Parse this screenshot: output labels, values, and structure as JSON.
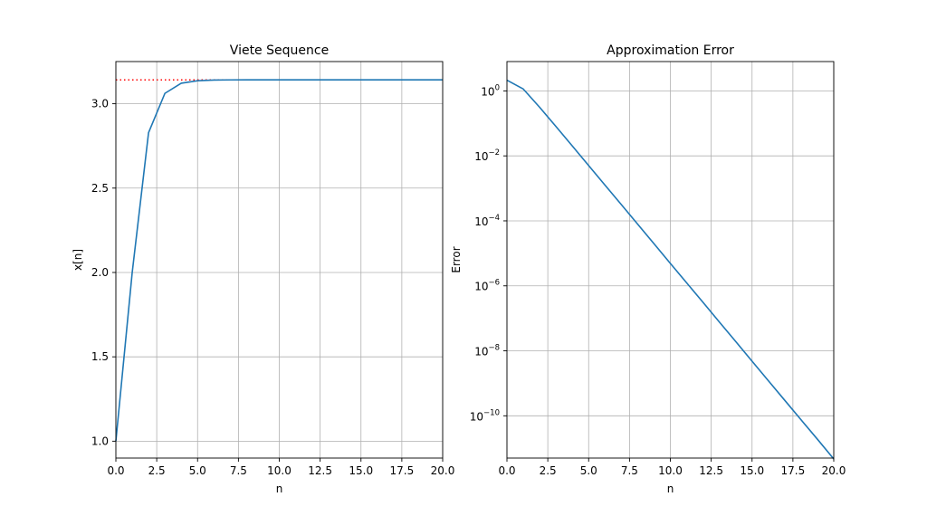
{
  "chart_data": [
    {
      "type": "line",
      "title": "Viete Sequence",
      "xlabel": "n",
      "ylabel": "x[n]",
      "xlim": [
        0,
        20
      ],
      "ylim": [
        0.9,
        3.25
      ],
      "xticks": [
        0,
        2.5,
        5,
        7.5,
        10,
        12.5,
        15,
        17.5,
        20
      ],
      "xtick_labels": [
        "0.0",
        "2.5",
        "5.0",
        "7.5",
        "10.0",
        "12.5",
        "15.0",
        "17.5",
        "20.0"
      ],
      "yticks": [
        1.0,
        1.5,
        2.0,
        2.5,
        3.0
      ],
      "ytick_labels": [
        "1.0",
        "1.5",
        "2.0",
        "2.5",
        "3.0"
      ],
      "grid": true,
      "reference_line": {
        "y": 3.14159,
        "style": "dotted",
        "color": "#ff0000"
      },
      "series": [
        {
          "color": "#1f77b4",
          "x": [
            0,
            1,
            2,
            3,
            4,
            5,
            6,
            7,
            8,
            9,
            10,
            11,
            12,
            13,
            14,
            15,
            16,
            17,
            18,
            19,
            20
          ],
          "y": [
            1.0,
            2.0,
            2.8284,
            3.0615,
            3.1214,
            3.1365,
            3.1403,
            3.1413,
            3.1415,
            3.1416,
            3.1416,
            3.1416,
            3.1416,
            3.1416,
            3.1416,
            3.1416,
            3.1416,
            3.1416,
            3.1416,
            3.1416,
            3.1416
          ]
        }
      ]
    },
    {
      "type": "line",
      "title": "Approximation Error",
      "xlabel": "n",
      "ylabel": "Error",
      "xlim": [
        0,
        20
      ],
      "ylim": [
        5e-12,
        8
      ],
      "yscale": "log",
      "xticks": [
        0,
        2.5,
        5,
        7.5,
        10,
        12.5,
        15,
        17.5,
        20
      ],
      "xtick_labels": [
        "0.0",
        "2.5",
        "5.0",
        "7.5",
        "10.0",
        "12.5",
        "15.0",
        "17.5",
        "20.0"
      ],
      "yticks": [
        1,
        0.01,
        0.0001,
        1e-06,
        1e-08,
        1e-10
      ],
      "ytick_labels": [
        {
          "base": "10",
          "exp": "0"
        },
        {
          "base": "10",
          "exp": "−2"
        },
        {
          "base": "10",
          "exp": "−4"
        },
        {
          "base": "10",
          "exp": "−6"
        },
        {
          "base": "10",
          "exp": "−8"
        },
        {
          "base": "10",
          "exp": "−10"
        }
      ],
      "grid": true,
      "series": [
        {
          "color": "#1f77b4",
          "x": [
            0,
            1,
            2,
            3,
            4,
            5,
            6,
            7,
            8,
            9,
            10,
            11,
            12,
            13,
            14,
            15,
            16,
            17,
            18,
            19,
            20
          ],
          "y": [
            2.1416,
            1.1416,
            0.3132,
            0.0801,
            0.0202,
            0.00505,
            0.00126,
            0.000316,
            7.9e-05,
            1.97e-05,
            4.9e-06,
            1.23e-06,
            3.1e-07,
            7.7e-08,
            1.93e-08,
            4.8e-09,
            1.2e-09,
            3e-10,
            7.5e-11,
            1.9e-11,
            4.7e-12
          ]
        }
      ]
    }
  ]
}
